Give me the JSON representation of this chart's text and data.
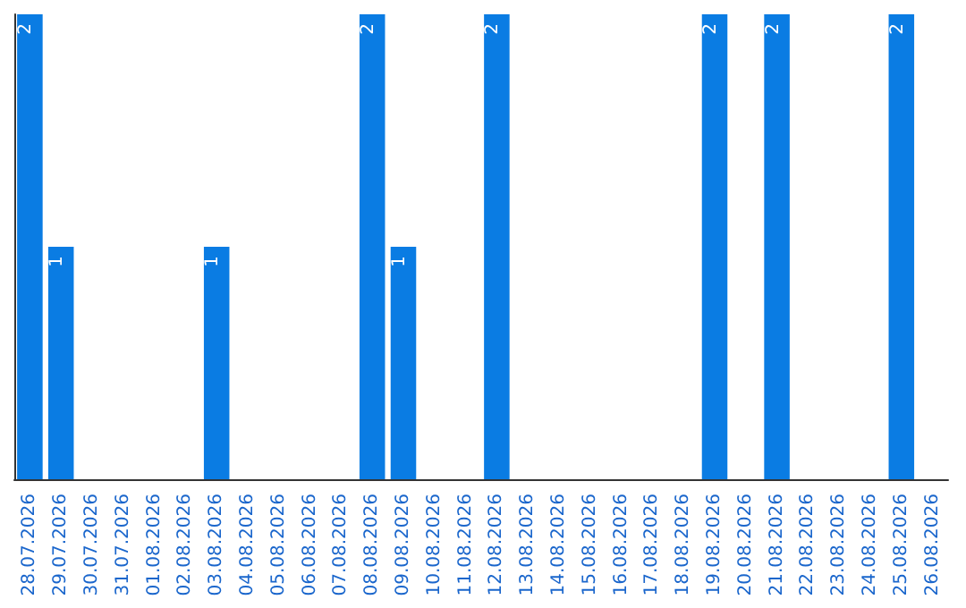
{
  "chart_data": {
    "type": "bar",
    "categories": [
      "28.07.2026",
      "29.07.2026",
      "30.07.2026",
      "31.07.2026",
      "01.08.2026",
      "02.08.2026",
      "03.08.2026",
      "04.08.2026",
      "05.08.2026",
      "06.08.2026",
      "07.08.2026",
      "08.08.2026",
      "09.08.2026",
      "10.08.2026",
      "11.08.2026",
      "12.08.2026",
      "13.08.2026",
      "14.08.2026",
      "15.08.2026",
      "16.08.2026",
      "17.08.2026",
      "18.08.2026",
      "19.08.2026",
      "20.08.2026",
      "21.08.2026",
      "22.08.2026",
      "23.08.2026",
      "24.08.2026",
      "25.08.2026",
      "26.08.2026"
    ],
    "values": [
      2,
      1,
      null,
      null,
      null,
      null,
      1,
      null,
      null,
      null,
      null,
      2,
      1,
      null,
      null,
      2,
      null,
      null,
      null,
      null,
      null,
      null,
      2,
      null,
      2,
      null,
      null,
      null,
      2,
      null
    ],
    "color": "#0a7ce3",
    "data_labels": true,
    "grid": false,
    "tick_labels": "x"
  }
}
